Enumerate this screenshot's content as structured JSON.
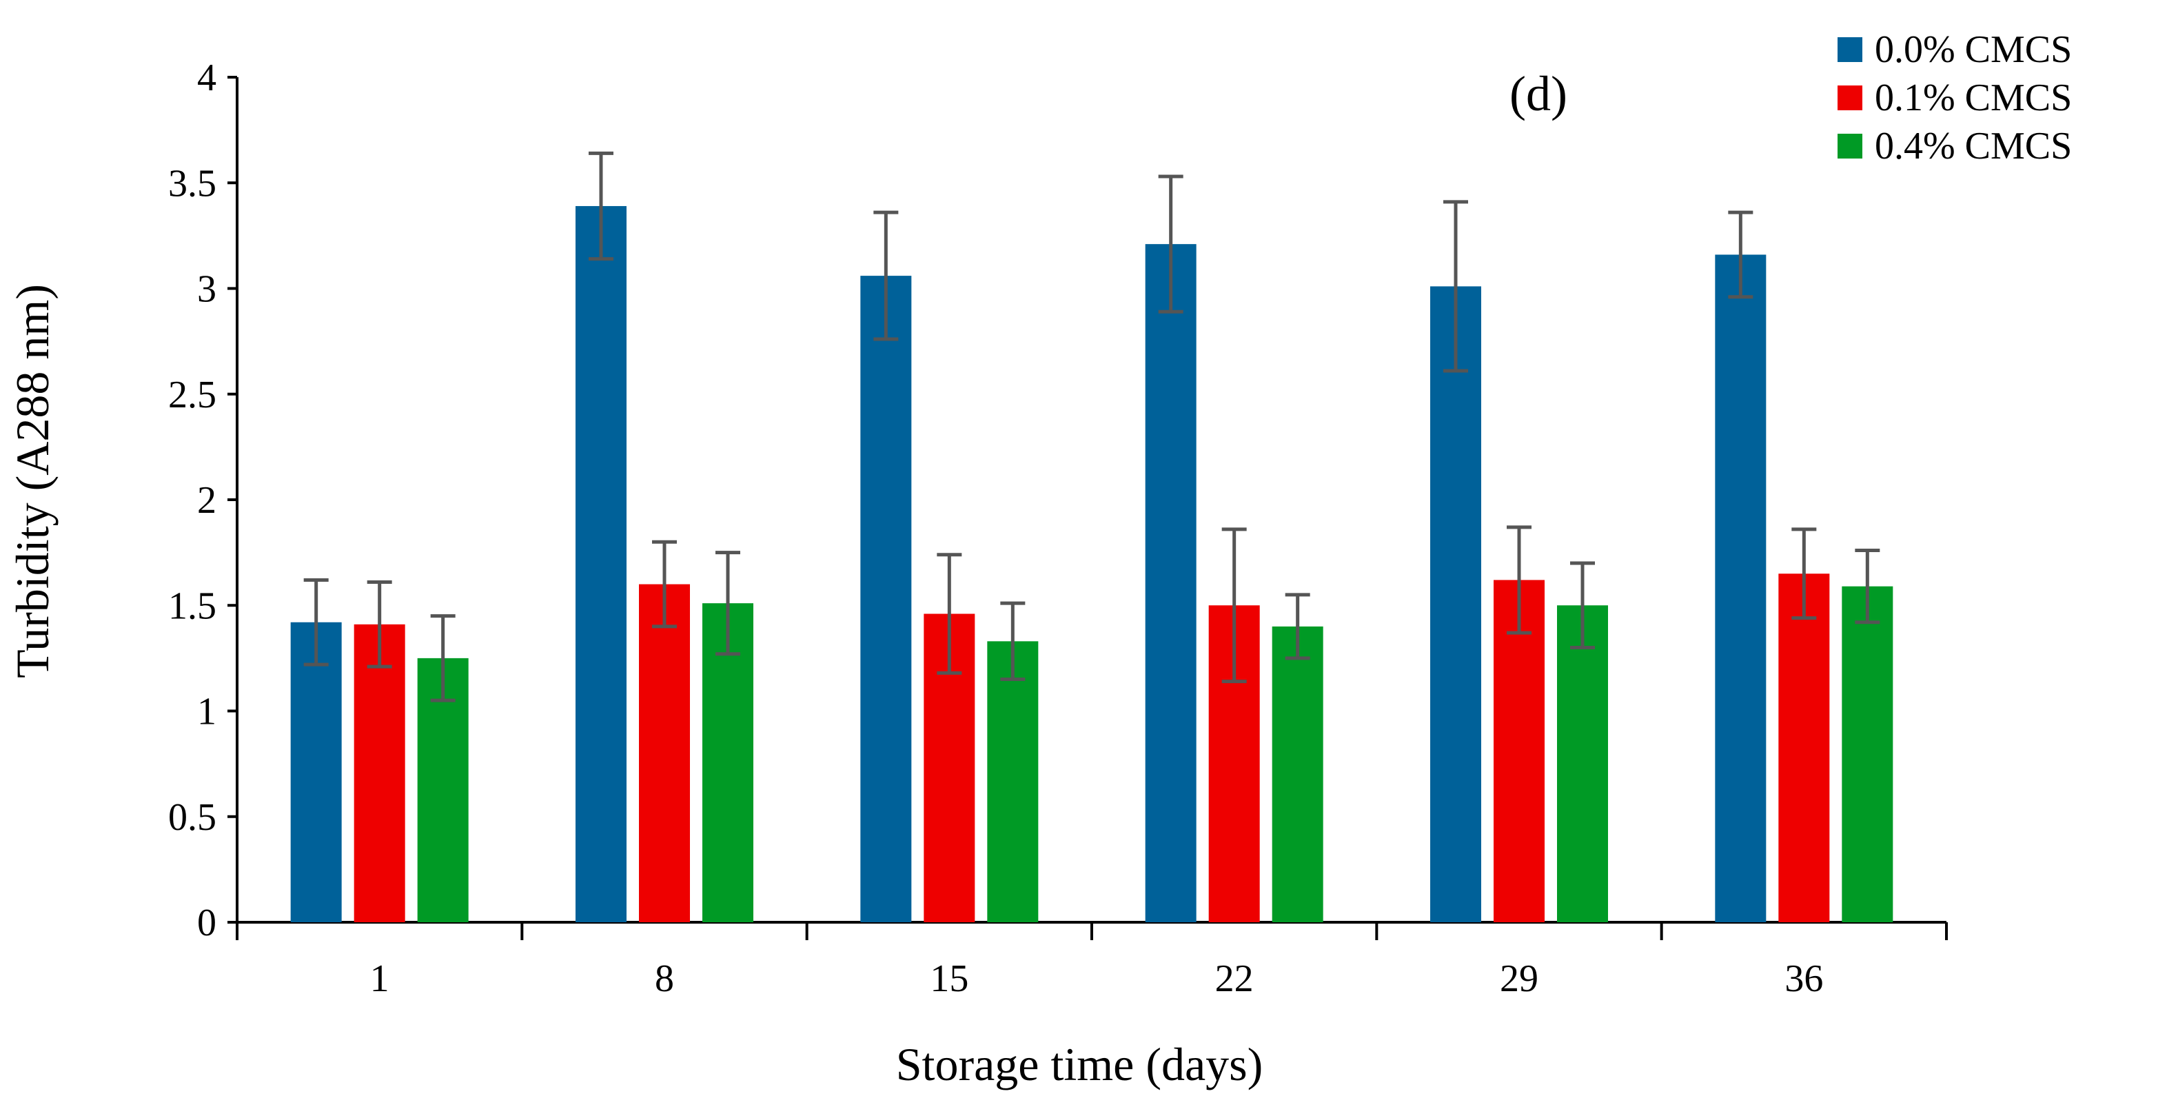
{
  "chart_data": {
    "type": "bar",
    "panel_label": "(d)",
    "title": "",
    "xlabel": "Storage time (days)",
    "ylabel": "Turbidity (A288 nm)",
    "categories": [
      "1",
      "8",
      "15",
      "22",
      "29",
      "36"
    ],
    "ylim": [
      0,
      4
    ],
    "yticks": [
      0,
      0.5,
      1,
      1.5,
      2,
      2.5,
      3,
      3.5,
      4
    ],
    "ytick_labels": [
      "0",
      "0.5",
      "1",
      "1.5",
      "2",
      "2.5",
      "3",
      "3.5",
      "4"
    ],
    "grid": false,
    "legend_position": "top-right",
    "series": [
      {
        "name": "0.0% CMCS",
        "color": "#006199",
        "values": [
          1.42,
          3.39,
          3.06,
          3.21,
          3.01,
          3.16
        ],
        "errors": [
          0.2,
          0.25,
          0.3,
          0.32,
          0.4,
          0.2
        ]
      },
      {
        "name": "0.1% CMCS",
        "color": "#EE0000",
        "values": [
          1.41,
          1.6,
          1.46,
          1.5,
          1.62,
          1.65
        ],
        "errors": [
          0.2,
          0.2,
          0.28,
          0.36,
          0.25,
          0.21
        ]
      },
      {
        "name": "0.4% CMCS",
        "color": "#009A25",
        "values": [
          1.25,
          1.51,
          1.33,
          1.4,
          1.5,
          1.59
        ],
        "errors": [
          0.2,
          0.24,
          0.18,
          0.15,
          0.2,
          0.17
        ]
      }
    ]
  }
}
